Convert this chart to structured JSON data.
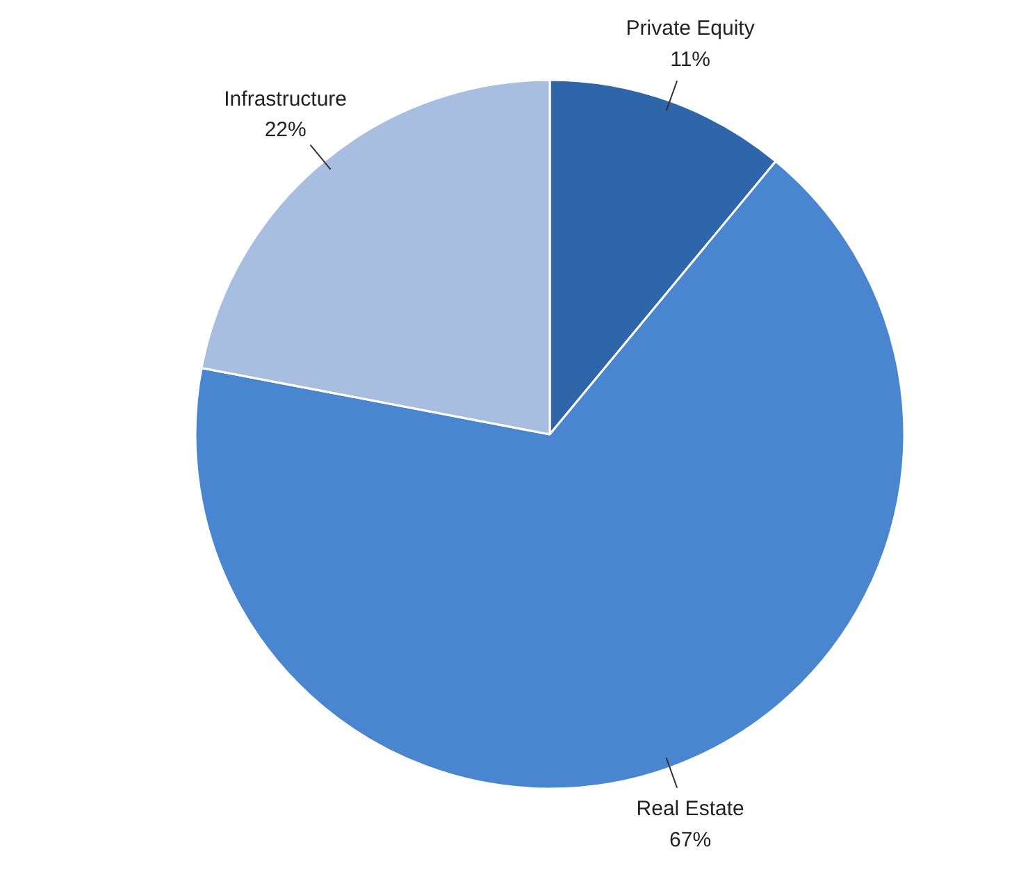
{
  "chart_data": {
    "type": "pie",
    "categories": [
      "Private Equity",
      "Real Estate",
      "Infrastructure"
    ],
    "values": [
      11,
      67,
      22
    ],
    "colors": [
      "#2f66a9",
      "#4a86d0",
      "#a8bee0"
    ],
    "value_labels": [
      "11%",
      "67%",
      "22%"
    ]
  }
}
